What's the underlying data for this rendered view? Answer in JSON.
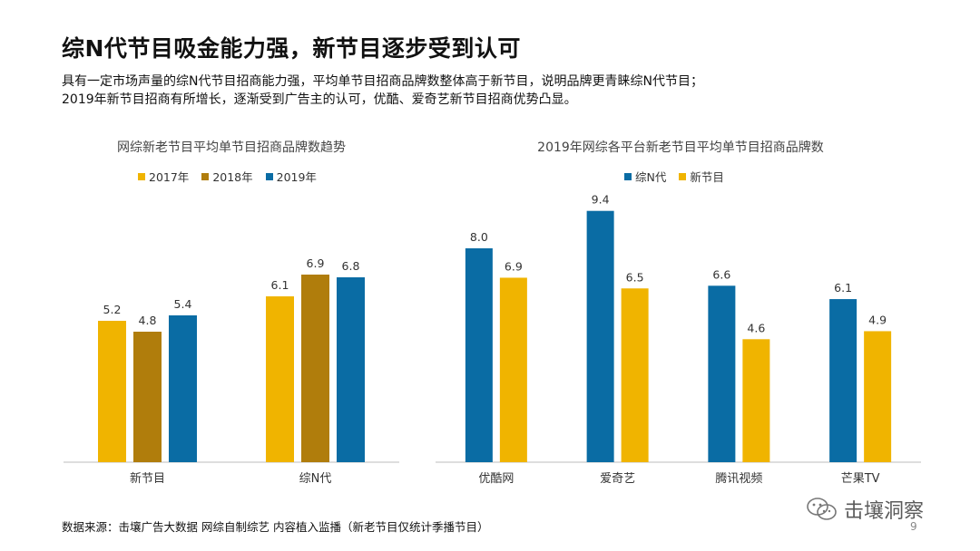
{
  "title": "综N代节目吸金能力强，新节目逐步受到认可",
  "subtitle_lines": [
    "具有一定市场声量的综N代节目招商能力强，平均单节目招商品牌数整体高于新节目，说明品牌更青睐综N代节目；",
    "2019年新节目招商有所增长，逐渐受到广告主的认可，优酷、爱奇艺新节目招商优势凸显。"
  ],
  "footer": {
    "source": "数据来源：击壤广告大数据 网综自制综艺 内容植入监播（新老节目仅统计季播节目）",
    "watermark": "击壤洞察",
    "page_number": "9"
  },
  "colors": {
    "yellow": "#F0B400",
    "brown": "#B07D0C",
    "blue": "#0A6CA4"
  },
  "chart_data": [
    {
      "type": "bar",
      "title": "网综新老节目平均单节目招商品牌数趋势",
      "categories": [
        "新节目",
        "综N代"
      ],
      "series": [
        {
          "name": "2017年",
          "values": [
            5.2,
            6.1
          ],
          "color": "#F0B400"
        },
        {
          "name": "2018年",
          "values": [
            4.8,
            6.9
          ],
          "color": "#B07D0C"
        },
        {
          "name": "2019年",
          "values": [
            5.4,
            6.8
          ],
          "color": "#0A6CA4"
        }
      ],
      "ylim": [
        0,
        10
      ],
      "grid": false,
      "legend_position": "top"
    },
    {
      "type": "bar",
      "title": "2019年网综各平台新老节目平均单节目招商品牌数",
      "categories": [
        "优酷网",
        "爱奇艺",
        "腾讯视频",
        "芒果TV"
      ],
      "series": [
        {
          "name": "综N代",
          "values": [
            8.0,
            9.4,
            6.6,
            6.1
          ],
          "color": "#0A6CA4"
        },
        {
          "name": "新节目",
          "values": [
            6.9,
            6.5,
            4.6,
            4.9
          ],
          "color": "#F0B400"
        }
      ],
      "ylim": [
        0,
        10
      ],
      "grid": false,
      "legend_position": "top"
    }
  ]
}
